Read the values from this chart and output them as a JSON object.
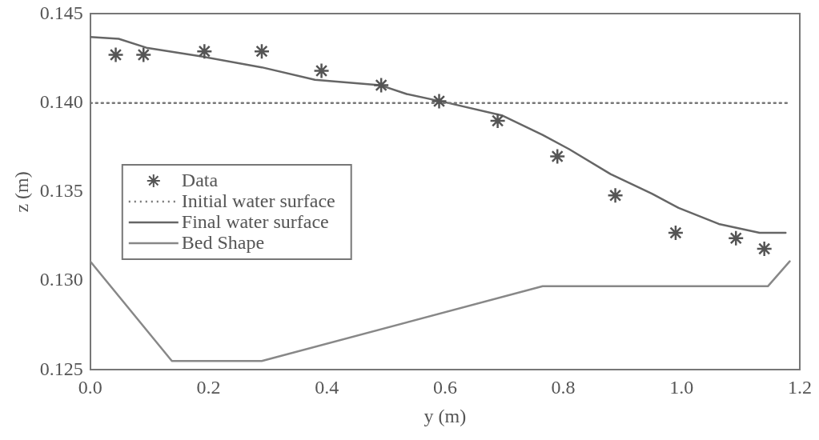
{
  "chart_data": {
    "type": "line",
    "xlabel": "y (m)",
    "ylabel": "z (m)",
    "xlim": [
      0,
      1.2
    ],
    "xticks": [
      {
        "value": 0,
        "label": "0.0"
      },
      0.2,
      0.4,
      0.6,
      0.8,
      {
        "value": 1,
        "label": "1.0"
      },
      1.2
    ],
    "ylim": [
      0.125,
      0.145
    ],
    "yticks": [
      0.125,
      {
        "value": 0.13,
        "label": "0.130"
      },
      0.135,
      {
        "value": 0.14,
        "label": "0.140"
      },
      0.145
    ],
    "grid": false,
    "legend": "center left",
    "series": [
      {
        "name": "Data",
        "type": "scatter",
        "marker": "cross",
        "color": "#555555",
        "x": [
          0.043,
          0.09,
          0.193,
          0.29,
          0.391,
          0.492,
          0.59,
          0.689,
          0.79,
          0.888,
          0.99,
          1.092,
          1.14
        ],
        "values": [
          0.1427,
          0.1427,
          0.1429,
          0.1429,
          0.1418,
          0.141,
          0.1401,
          0.139,
          0.137,
          0.1348,
          0.1327,
          0.1324,
          0.1318
        ]
      },
      {
        "name": "Initial water surface",
        "type": "line",
        "line_style": "dotted",
        "marker": "none",
        "color": "#777777",
        "x": [
          0,
          1.18
        ],
        "values": [
          0.14,
          0.14
        ]
      },
      {
        "name": "Final water surface",
        "type": "line",
        "line_style": "solid",
        "marker": "none",
        "color": "#666666",
        "x": [
          0,
          0.048,
          0.095,
          0.19,
          0.29,
          0.38,
          0.49,
          0.535,
          0.605,
          0.696,
          0.765,
          0.81,
          0.88,
          0.95,
          0.995,
          1.063,
          1.132,
          1.176
        ],
        "values": [
          0.1437,
          0.1436,
          0.1431,
          0.1426,
          0.142,
          0.1413,
          0.141,
          0.1405,
          0.14,
          0.1393,
          0.1382,
          0.1374,
          0.136,
          0.1349,
          0.1341,
          0.1332,
          0.1327,
          0.1327
        ]
      },
      {
        "name": "Bed Shape",
        "type": "line",
        "line_style": "solid",
        "marker": "none",
        "color": "#888888",
        "x": [
          0,
          0.138,
          0.29,
          0.765,
          1.146,
          1.183
        ],
        "values": [
          0.1311,
          0.1255,
          0.1255,
          0.1297,
          0.1297,
          0.1311
        ]
      }
    ]
  }
}
